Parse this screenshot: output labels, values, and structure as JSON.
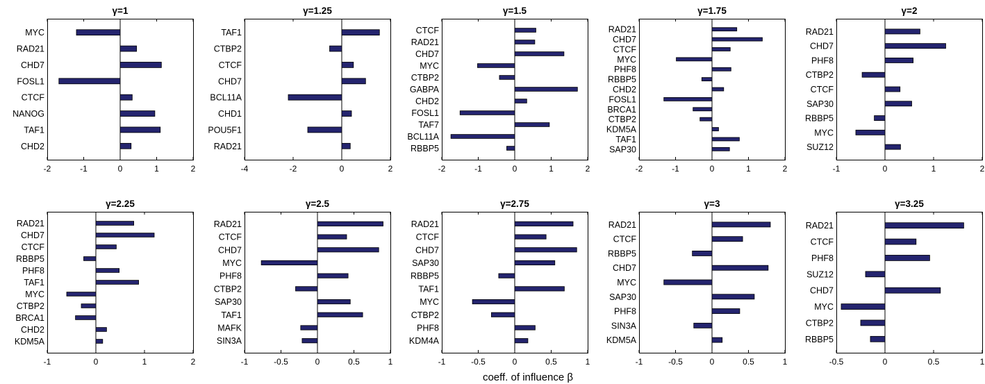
{
  "xlabel": "coeff. of influence  β",
  "colors": {
    "bar_fill": "#24246e",
    "bar_stroke": "#000000",
    "axis": "#000000"
  },
  "chart_data": [
    {
      "type": "bar",
      "orientation": "horizontal",
      "title": "γ=1",
      "xlim": [
        -2,
        2
      ],
      "xticks": [
        -2,
        -1,
        0,
        1,
        2
      ],
      "categories": [
        "MYC",
        "RAD21",
        "CHD7",
        "FOSL1",
        "CTCF",
        "NANOG",
        "TAF1",
        "CHD2"
      ],
      "values": [
        -1.2,
        0.45,
        1.13,
        -1.68,
        0.33,
        0.95,
        1.1,
        0.3
      ]
    },
    {
      "type": "bar",
      "orientation": "horizontal",
      "title": "γ=1.25",
      "xlim": [
        -4,
        2
      ],
      "xticks": [
        -4,
        -2,
        0,
        2
      ],
      "categories": [
        "TAF1",
        "CTBP2",
        "CTCF",
        "CHD7",
        "BCL11A",
        "CHD1",
        "POU5F1",
        "RAD21"
      ],
      "values": [
        1.55,
        -0.5,
        0.48,
        0.98,
        -2.2,
        0.4,
        -1.4,
        0.35
      ]
    },
    {
      "type": "bar",
      "orientation": "horizontal",
      "title": "γ=1.5",
      "xlim": [
        -2,
        2
      ],
      "xticks": [
        -2,
        -1,
        0,
        1,
        2
      ],
      "categories": [
        "CTCF",
        "RAD21",
        "CHD7",
        "MYC",
        "CTBP2",
        "GABPA",
        "CHD2",
        "FOSL1",
        "TAF7",
        "BCL11A",
        "RBBP5"
      ],
      "values": [
        0.58,
        0.55,
        1.35,
        -1.02,
        -0.42,
        1.72,
        0.33,
        -1.5,
        0.95,
        -1.75,
        -0.22
      ]
    },
    {
      "type": "bar",
      "orientation": "horizontal",
      "title": "γ=1.75",
      "xlim": [
        -2,
        2
      ],
      "xticks": [
        -2,
        -1,
        0,
        1,
        2
      ],
      "categories": [
        "RAD21",
        "CHD7",
        "CTCF",
        "MYC",
        "PHF8",
        "RBBP5",
        "CHD2",
        "FOSL1",
        "BRCA1",
        "CTBP2",
        "KDM5A",
        "TAF1",
        "SAP30"
      ],
      "values": [
        0.68,
        1.38,
        0.5,
        -0.98,
        0.52,
        -0.28,
        0.32,
        -1.32,
        -0.52,
        -0.33,
        0.18,
        0.75,
        0.48
      ]
    },
    {
      "type": "bar",
      "orientation": "horizontal",
      "title": "γ=2",
      "xlim": [
        -1,
        2
      ],
      "xticks": [
        -1,
        0,
        1,
        2
      ],
      "categories": [
        "RAD21",
        "CHD7",
        "PHF8",
        "CTBP2",
        "CTCF",
        "SAP30",
        "RBBP5",
        "MYC",
        "SUZ12"
      ],
      "values": [
        0.72,
        1.25,
        0.58,
        -0.47,
        0.31,
        0.55,
        -0.22,
        -0.6,
        0.32
      ]
    },
    {
      "type": "bar",
      "orientation": "horizontal",
      "title": "γ=2.25",
      "xlim": [
        -1,
        2
      ],
      "xticks": [
        -1,
        0,
        1,
        2
      ],
      "categories": [
        "RAD21",
        "CHD7",
        "CTCF",
        "RBBP5",
        "PHF8",
        "TAF1",
        "MYC",
        "CTBP2",
        "BRCA1",
        "CHD2",
        "KDM5A"
      ],
      "values": [
        0.78,
        1.2,
        0.42,
        -0.25,
        0.48,
        0.88,
        -0.6,
        -0.3,
        -0.42,
        0.22,
        0.14
      ]
    },
    {
      "type": "bar",
      "orientation": "horizontal",
      "title": "γ=2.5",
      "xlim": [
        -1,
        1
      ],
      "xticks": [
        -1,
        -0.5,
        0,
        0.5,
        1
      ],
      "categories": [
        "RAD21",
        "CTCF",
        "CHD7",
        "MYC",
        "PHF8",
        "CTBP2",
        "SAP30",
        "TAF1",
        "MAFK",
        "SIN3A"
      ],
      "values": [
        0.9,
        0.4,
        0.84,
        -0.77,
        0.42,
        -0.3,
        0.45,
        0.62,
        -0.23,
        -0.21
      ]
    },
    {
      "type": "bar",
      "orientation": "horizontal",
      "title": "γ=2.75",
      "xlim": [
        -1,
        1
      ],
      "xticks": [
        -1,
        -0.5,
        0,
        0.5,
        1
      ],
      "categories": [
        "RAD21",
        "CTCF",
        "CHD7",
        "SAP30",
        "RBBP5",
        "TAF1",
        "MYC",
        "CTBP2",
        "PHF8",
        "KDM4A"
      ],
      "values": [
        0.8,
        0.43,
        0.85,
        0.55,
        -0.22,
        0.68,
        -0.58,
        -0.32,
        0.28,
        0.18
      ]
    },
    {
      "type": "bar",
      "orientation": "horizontal",
      "title": "γ=3",
      "xlim": [
        -1,
        1
      ],
      "xticks": [
        -1,
        -0.5,
        0,
        0.5,
        1
      ],
      "categories": [
        "RAD21",
        "CTCF",
        "RBBP5",
        "CHD7",
        "MYC",
        "SAP30",
        "PHF8",
        "SIN3A",
        "KDM5A"
      ],
      "values": [
        0.8,
        0.42,
        -0.27,
        0.77,
        -0.66,
        0.58,
        0.38,
        -0.25,
        0.14
      ]
    },
    {
      "type": "bar",
      "orientation": "horizontal",
      "title": "γ=3.25",
      "xlim": [
        -0.5,
        1
      ],
      "xticks": [
        -0.5,
        0,
        0.5,
        1
      ],
      "categories": [
        "RAD21",
        "CTCF",
        "PHF8",
        "SUZ12",
        "CHD7",
        "MYC",
        "CTBP2",
        "RBBP5"
      ],
      "values": [
        0.81,
        0.32,
        0.46,
        -0.2,
        0.57,
        -0.45,
        -0.25,
        -0.15
      ]
    }
  ]
}
